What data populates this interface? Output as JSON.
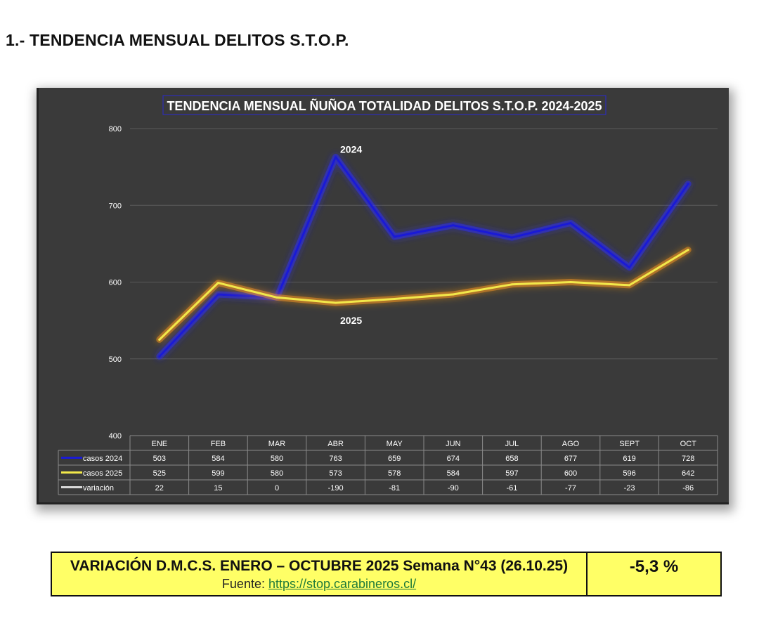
{
  "page_title": "1.- TENDENCIA MENSUAL DELITOS S.T.O.P.",
  "colors": {
    "background": "#3a3a3a",
    "series_2024": "#1a1ad6",
    "series_2025": "#f2e84a",
    "series_variacion": "#d9d9d9",
    "summary_background": "#ffff66"
  },
  "chart_data": {
    "type": "line",
    "title": "TENDENCIA MENSUAL ÑUÑOA TOTALIDAD DELITOS S.T.O.P. 2024-2025",
    "categories": [
      "ENE",
      "FEB",
      "MAR",
      "ABR",
      "MAY",
      "JUN",
      "JUL",
      "AGO",
      "SEPT",
      "OCT"
    ],
    "series": [
      {
        "name": "casos 2024",
        "values": [
          503,
          584,
          580,
          763,
          659,
          674,
          658,
          677,
          619,
          728
        ]
      },
      {
        "name": "casos 2025",
        "values": [
          525,
          599,
          580,
          573,
          578,
          584,
          597,
          600,
          596,
          642
        ]
      },
      {
        "name": "variación",
        "values": [
          22,
          15,
          0,
          -190,
          -81,
          -90,
          -61,
          -77,
          -23,
          -86
        ]
      }
    ],
    "ylim": [
      400,
      800
    ],
    "yticks": [
      400,
      500,
      600,
      700,
      800
    ],
    "grid": true,
    "data_table": true,
    "annotations": [
      {
        "text": "2024",
        "category": "ABR",
        "series": "casos 2024"
      },
      {
        "text": "2025",
        "category": "ABR",
        "series": "casos 2025"
      }
    ]
  },
  "summary": {
    "title": "VARIACIÓN D.M.C.S. ENERO – OCTUBRE 2025 Semana N°43 (26.10.25)",
    "source_label": "Fuente: ",
    "source_link": "https://stop.carabineros.cl/",
    "value": "-5,3 %"
  }
}
